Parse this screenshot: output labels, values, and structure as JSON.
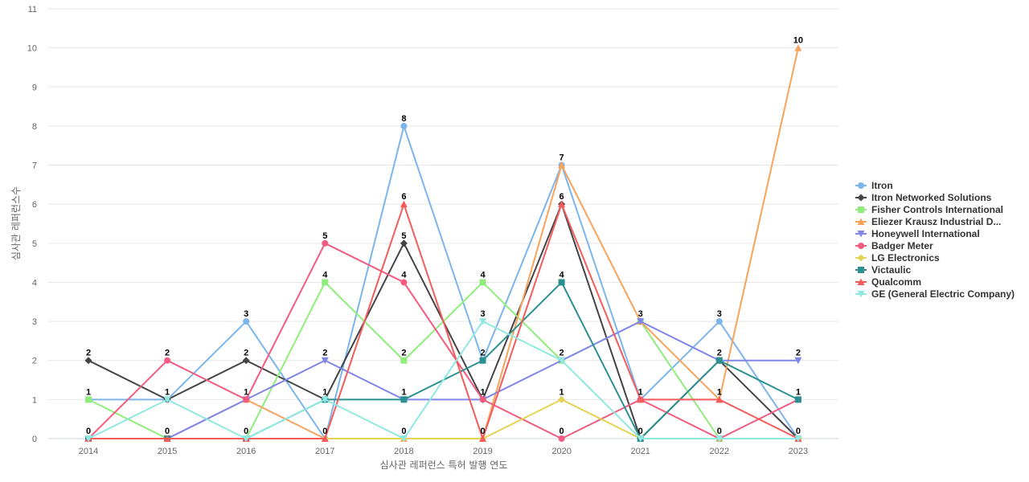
{
  "chart_data": {
    "type": "line",
    "title": "",
    "xlabel": "심사관 레퍼런스 특허 발행 연도",
    "ylabel": "심사관 레퍼런스수",
    "x": [
      "2014",
      "2015",
      "2016",
      "2017",
      "2018",
      "2019",
      "2020",
      "2021",
      "2022",
      "2023"
    ],
    "ylim": [
      0,
      11
    ],
    "yticks": [
      0,
      1,
      2,
      3,
      4,
      5,
      6,
      7,
      8,
      9,
      10,
      11
    ],
    "grid": true,
    "legend_position": "right",
    "series": [
      {
        "name": "Itron",
        "color": "#7cb5ec",
        "marker": "circle",
        "values": [
          1,
          1,
          3,
          0,
          8,
          2,
          7,
          1,
          3,
          0
        ]
      },
      {
        "name": "Itron Networked Solutions",
        "color": "#434348",
        "marker": "diamond",
        "values": [
          2,
          1,
          2,
          1,
          5,
          1,
          6,
          0,
          2,
          0
        ]
      },
      {
        "name": "Fisher Controls International",
        "color": "#90ed7d",
        "marker": "square",
        "values": [
          1,
          0,
          0,
          4,
          2,
          4,
          2,
          3,
          0,
          0
        ]
      },
      {
        "name": "Eliezer Krausz Industrial D...",
        "color": "#f7a35c",
        "marker": "triangle",
        "values": [
          0,
          0,
          1,
          0,
          0,
          0,
          7,
          3,
          1,
          10
        ]
      },
      {
        "name": "Honeywell International",
        "color": "#8085e9",
        "marker": "triangle-down",
        "values": [
          0,
          0,
          1,
          2,
          1,
          1,
          2,
          3,
          2,
          2
        ]
      },
      {
        "name": "Badger Meter",
        "color": "#f15c80",
        "marker": "circle",
        "values": [
          0,
          2,
          1,
          5,
          4,
          1,
          0,
          1,
          0,
          1
        ]
      },
      {
        "name": "LG Electronics",
        "color": "#e4d354",
        "marker": "diamond",
        "values": [
          0,
          0,
          0,
          0,
          0,
          0,
          1,
          0,
          0,
          0
        ]
      },
      {
        "name": "Victaulic",
        "color": "#2b908f",
        "marker": "square",
        "values": [
          0,
          0,
          0,
          1,
          1,
          2,
          4,
          0,
          2,
          1
        ]
      },
      {
        "name": "Qualcomm",
        "color": "#f45b5b",
        "marker": "triangle",
        "values": [
          0,
          0,
          0,
          0,
          6,
          0,
          6,
          1,
          1,
          0
        ]
      },
      {
        "name": "GE (General Electric Company)",
        "color": "#91e8e1",
        "marker": "triangle-down",
        "values": [
          0,
          1,
          0,
          1,
          0,
          3,
          2,
          0,
          0,
          0
        ]
      }
    ],
    "data_labels": [
      {
        "x": "2014",
        "values": [
          "2",
          "1",
          "0"
        ]
      },
      {
        "x": "2015",
        "values": [
          "2",
          "1",
          "0"
        ]
      },
      {
        "x": "2016",
        "values": [
          "3",
          "2",
          "1",
          "0"
        ]
      },
      {
        "x": "2017",
        "values": [
          "5",
          "4",
          "2",
          "1",
          "0"
        ]
      },
      {
        "x": "2018",
        "values": [
          "8",
          "6",
          "5",
          "4",
          "2",
          "1",
          "0"
        ]
      },
      {
        "x": "2019",
        "values": [
          "4",
          "3",
          "2",
          "1",
          "0"
        ]
      },
      {
        "x": "2020",
        "values": [
          "7",
          "6",
          "4",
          "2",
          "1",
          "0"
        ]
      },
      {
        "x": "2021",
        "values": [
          "3",
          "1",
          "0"
        ]
      },
      {
        "x": "2022",
        "values": [
          "3",
          "2",
          "1",
          "0"
        ]
      },
      {
        "x": "2023",
        "values": [
          "10",
          "2",
          "1",
          "0"
        ]
      }
    ]
  }
}
